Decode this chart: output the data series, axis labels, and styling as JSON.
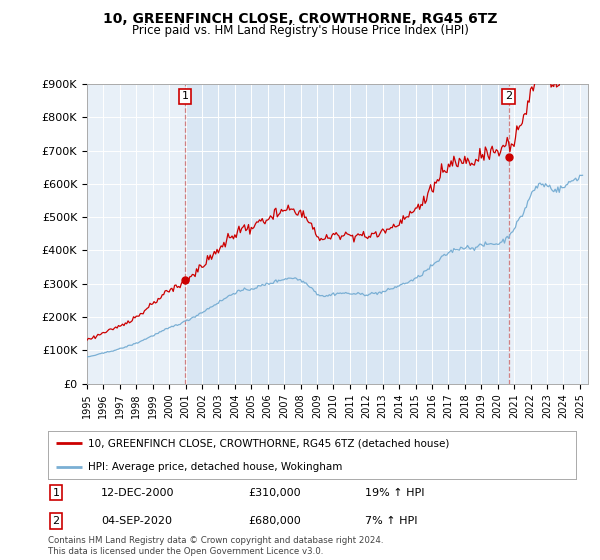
{
  "title": "10, GREENFINCH CLOSE, CROWTHORNE, RG45 6TZ",
  "subtitle": "Price paid vs. HM Land Registry's House Price Index (HPI)",
  "ylabel_ticks": [
    "£0",
    "£100K",
    "£200K",
    "£300K",
    "£400K",
    "£500K",
    "£600K",
    "£700K",
    "£800K",
    "£900K"
  ],
  "ylim": [
    0,
    900000
  ],
  "xlim_start": 1995.0,
  "xlim_end": 2025.5,
  "property_color": "#cc0000",
  "hpi_color": "#7aafd4",
  "background_color": "#ddeeff",
  "plot_bg": "#e8f0f8",
  "vline_color": "#cc6666",
  "grid_color": "#ffffff",
  "legend1_label": "10, GREENFINCH CLOSE, CROWTHORNE, RG45 6TZ (detached house)",
  "legend2_label": "HPI: Average price, detached house, Wokingham",
  "annotation1_date": "12-DEC-2000",
  "annotation1_price": "£310,000",
  "annotation1_hpi": "19% ↑ HPI",
  "annotation2_date": "04-SEP-2020",
  "annotation2_price": "£680,000",
  "annotation2_hpi": "7% ↑ HPI",
  "footer": "Contains HM Land Registry data © Crown copyright and database right 2024.\nThis data is licensed under the Open Government Licence v3.0.",
  "sale1_x": 2000.958,
  "sale1_y": 310000,
  "sale2_x": 2020.667,
  "sale2_y": 680000
}
